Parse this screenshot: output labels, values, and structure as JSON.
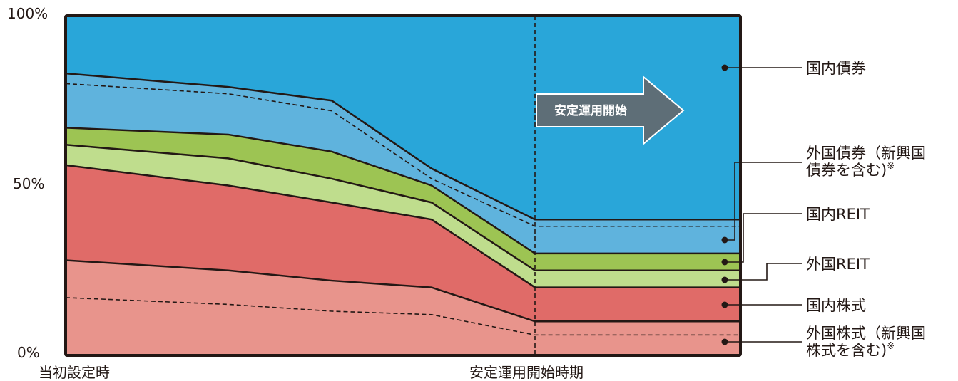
{
  "chart_data": {
    "type": "area",
    "stacked": true,
    "x_labels": [
      "当初設定時",
      "安定運用開始時期"
    ],
    "y_ticks": [
      "100%",
      "50%",
      "0%"
    ],
    "ylim": [
      0,
      100
    ],
    "series": [
      {
        "name": "外国株式（新興国株式を含む)※",
        "legend_lines": [
          "外国株式（新興国",
          "株式を含む)"
        ],
        "sup": "※",
        "color": "#e8948c",
        "values": [
          28,
          25,
          22,
          20,
          10,
          10
        ],
        "inner_dashed": [
          17,
          15,
          13,
          12,
          6,
          6
        ]
      },
      {
        "name": "国内株式",
        "legend_lines": [
          "国内株式"
        ],
        "color": "#e06b68",
        "values": [
          56,
          50,
          45,
          40,
          20,
          20
        ]
      },
      {
        "name": "外国REIT",
        "legend_lines": [
          "外国REIT"
        ],
        "color": "#bfdd8d",
        "values": [
          62,
          58,
          52,
          45,
          25,
          25
        ]
      },
      {
        "name": "国内REIT",
        "legend_lines": [
          "国内REIT"
        ],
        "color": "#9dc453",
        "values": [
          67,
          65,
          60,
          50,
          30,
          30
        ]
      },
      {
        "name": "外国債券（新興国債券を含む)※",
        "legend_lines": [
          "外国債券（新興国",
          "債券を含む)"
        ],
        "sup": "※",
        "color": "#5fb3dd",
        "values": [
          83,
          79,
          75,
          55,
          40,
          40
        ],
        "inner_dashed": [
          80,
          77,
          72,
          52,
          38,
          38
        ]
      },
      {
        "name": "国内債券",
        "legend_lines": [
          "国内債券"
        ],
        "color": "#29a6d9",
        "values": [
          100,
          100,
          100,
          100,
          100,
          100
        ]
      }
    ],
    "grid": false,
    "legend_position": "right",
    "annotation": {
      "text": "安定運用開始",
      "arrow_color": "#5e6e77"
    }
  }
}
